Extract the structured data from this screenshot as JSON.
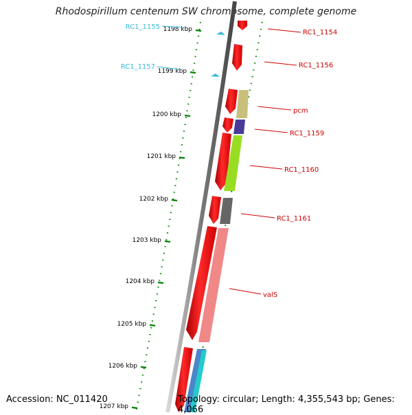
{
  "title": "Rhodospirillum centenum SW chromosome, complete genome",
  "footer": {
    "accession": "Accession: NC_011420",
    "topology": "Topology: circular; Length: 4,355,543 bp; Genes: 4,066"
  },
  "colors": {
    "ruler_tick": "#008000",
    "forward_strand_gene": "#ff0000",
    "backbone": "#808080",
    "right_label": "#cc0000",
    "left_label": "#33bbdd"
  },
  "ruler": [
    {
      "label": "1198 kbp"
    },
    {
      "label": "1199 kbp"
    },
    {
      "label": "1200 kbp"
    },
    {
      "label": "1201 kbp"
    },
    {
      "label": "1202 kbp"
    },
    {
      "label": "1203 kbp"
    },
    {
      "label": "1204 kbp"
    },
    {
      "label": "1205 kbp"
    },
    {
      "label": "1206 kbp"
    },
    {
      "label": "1207 kbp"
    }
  ],
  "gene_labels": [
    {
      "label": "RC1_1155",
      "side": "left",
      "color": "#33bbdd"
    },
    {
      "label": "RC1_1157",
      "side": "left",
      "color": "#33bbdd"
    },
    {
      "label": "RC1_1154",
      "side": "right",
      "color": "#cc0000"
    },
    {
      "label": "RC1_1156",
      "side": "right",
      "color": "#cc0000"
    },
    {
      "label": "pcm",
      "side": "right",
      "color": "#cc0000"
    },
    {
      "label": "RC1_1159",
      "side": "right",
      "color": "#cc0000"
    },
    {
      "label": "RC1_1160",
      "side": "right",
      "color": "#cc0000"
    },
    {
      "label": "RC1_1161",
      "side": "right",
      "color": "#cc0000"
    },
    {
      "label": "valS",
      "side": "right",
      "color": "#cc0000"
    }
  ],
  "cog_colors": [
    "#c8c07a",
    "#4a3a9a",
    "#99dd22",
    "#666666",
    "#f08888",
    "#4b86c8",
    "#22cccc"
  ]
}
